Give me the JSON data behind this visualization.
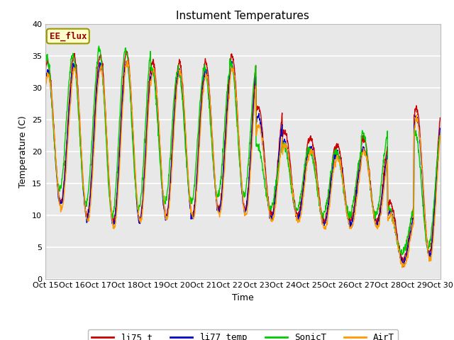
{
  "title": "Instument Temperatures",
  "xlabel": "Time",
  "ylabel": "Temperature (C)",
  "ylim": [
    0,
    40
  ],
  "yticks": [
    0,
    5,
    10,
    15,
    20,
    25,
    30,
    35,
    40
  ],
  "xtick_labels": [
    "Oct 15",
    "Oct 16",
    "Oct 17",
    "Oct 18",
    "Oct 19",
    "Oct 20",
    "Oct 21",
    "Oct 22",
    "Oct 23",
    "Oct 24",
    "Oct 25",
    "Oct 26",
    "Oct 27",
    "Oct 28",
    "Oct 29",
    "Oct 30"
  ],
  "colors": {
    "li75_t": "#cc0000",
    "li77_temp": "#0000cc",
    "SonicT": "#00cc00",
    "AirT": "#ff9900"
  },
  "legend_labels": [
    "li75_t",
    "li77_temp",
    "SonicT",
    "AirT"
  ],
  "plot_bg": "#e8e8e8",
  "fig_bg": "#ffffff",
  "annotation_text": "EE_flux",
  "annotation_bg": "#ffffcc",
  "annotation_border": "#999900",
  "title_fontsize": 11,
  "axis_fontsize": 9,
  "tick_fontsize": 8,
  "legend_fontsize": 9
}
